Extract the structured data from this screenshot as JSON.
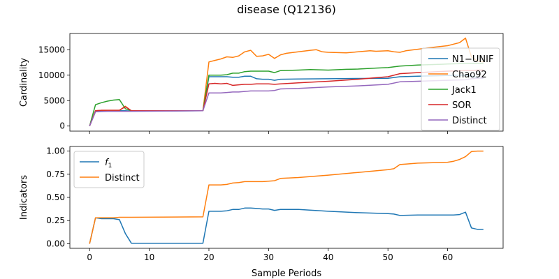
{
  "figure_title": "disease (Q12136)",
  "xlabel": "Sample Periods",
  "chart_data": [
    {
      "type": "line",
      "ylabel": "Cardinality",
      "xlim": [
        -3.3,
        69.3
      ],
      "ylim": [
        -1000,
        18200
      ],
      "xticks": [
        0,
        10,
        20,
        30,
        40,
        50,
        60
      ],
      "xtick_labels_visible": false,
      "yticks": [
        0,
        5000,
        10000,
        15000
      ],
      "ytick_labels": [
        "0",
        "5000",
        "10000",
        "15000"
      ],
      "legend_position": "right",
      "series": [
        {
          "name": "N1−UNIF",
          "color": "#1f77b4",
          "x": [
            0,
            1,
            2,
            3,
            4,
            5,
            6,
            7,
            19,
            20,
            21,
            22,
            23,
            24,
            25,
            26,
            27,
            28,
            29,
            30,
            31,
            32,
            35,
            40,
            45,
            50,
            52,
            55,
            60,
            62,
            63,
            64,
            65,
            66
          ],
          "y": [
            0,
            2900,
            3000,
            3000,
            3000,
            3000,
            3000,
            2950,
            3000,
            9700,
            9700,
            9700,
            9700,
            9600,
            9600,
            9800,
            9800,
            9300,
            9200,
            9200,
            9000,
            9200,
            9250,
            9300,
            9350,
            9400,
            9700,
            9800,
            9950,
            10000,
            10000,
            9800,
            9500,
            9400
          ]
        },
        {
          "name": "Chao92",
          "color": "#ff7f0e",
          "x": [
            0,
            1,
            2,
            3,
            4,
            5,
            6,
            7,
            19,
            20,
            21,
            22,
            23,
            24,
            25,
            26,
            27,
            28,
            29,
            30,
            31,
            32,
            33,
            35,
            37,
            38,
            39,
            40,
            43,
            45,
            47,
            48,
            50,
            51,
            52,
            53,
            55,
            57,
            60,
            61,
            62,
            63,
            64,
            65,
            66
          ],
          "y": [
            0,
            3000,
            3100,
            3100,
            3100,
            3100,
            3900,
            3000,
            3000,
            12600,
            12900,
            13200,
            13600,
            13500,
            13800,
            14600,
            14900,
            13700,
            13800,
            14100,
            13300,
            14000,
            14300,
            14600,
            14900,
            15000,
            14600,
            14500,
            14400,
            14600,
            14800,
            14700,
            14800,
            14600,
            14500,
            14800,
            15100,
            15400,
            15800,
            16100,
            16400,
            17300,
            13600,
            12800,
            12600
          ]
        },
        {
          "name": "Jack1",
          "color": "#2ca02c",
          "x": [
            0,
            1,
            2,
            3,
            4,
            5,
            6,
            7,
            19,
            20,
            21,
            22,
            23,
            24,
            25,
            26,
            27,
            28,
            29,
            30,
            31,
            32,
            35,
            37,
            40,
            43,
            45,
            48,
            50,
            52,
            55,
            60,
            63,
            64,
            65,
            66
          ],
          "y": [
            0,
            4200,
            4600,
            4900,
            5100,
            5200,
            3400,
            3000,
            3000,
            10000,
            10000,
            10000,
            10100,
            10400,
            10400,
            10700,
            10800,
            10800,
            10800,
            10800,
            10500,
            10900,
            11000,
            11100,
            11000,
            11150,
            11200,
            11400,
            11500,
            11800,
            12000,
            12200,
            12300,
            12300,
            12300,
            12300
          ]
        },
        {
          "name": "SOR",
          "color": "#d62728",
          "x": [
            0,
            1,
            2,
            3,
            4,
            5,
            6,
            7,
            19,
            20,
            21,
            22,
            23,
            24,
            25,
            26,
            27,
            28,
            29,
            30,
            31,
            32,
            35,
            40,
            45,
            48,
            50,
            52,
            55,
            60,
            63,
            64,
            65,
            66
          ],
          "y": [
            0,
            3000,
            3100,
            3100,
            3100,
            3100,
            3800,
            3000,
            3000,
            8300,
            8400,
            8300,
            8400,
            8000,
            8100,
            8200,
            8200,
            8300,
            8300,
            8300,
            8200,
            8300,
            8500,
            8800,
            9200,
            9500,
            9700,
            10300,
            10500,
            10800,
            10900,
            10900,
            11000,
            11000
          ]
        },
        {
          "name": "Distinct",
          "color": "#9467bd",
          "x": [
            0,
            1,
            2,
            3,
            4,
            5,
            6,
            7,
            19,
            20,
            21,
            22,
            23,
            24,
            25,
            26,
            27,
            28,
            29,
            30,
            31,
            32,
            35,
            40,
            45,
            50,
            52,
            55,
            60,
            63,
            64,
            65,
            66
          ],
          "y": [
            0,
            2800,
            2850,
            2900,
            2900,
            2900,
            2900,
            2900,
            3000,
            6500,
            6500,
            6500,
            6600,
            6700,
            6700,
            6800,
            6900,
            6900,
            6900,
            6900,
            7000,
            7300,
            7400,
            7700,
            7900,
            8200,
            8700,
            8800,
            9000,
            9100,
            9300,
            9400,
            9450
          ]
        }
      ]
    },
    {
      "type": "line",
      "ylabel": "Indicators",
      "xlim": [
        -3.3,
        69.3
      ],
      "ylim": [
        -0.05,
        1.05
      ],
      "xticks": [
        0,
        10,
        20,
        30,
        40,
        50,
        60
      ],
      "xtick_labels": [
        "0",
        "10",
        "20",
        "30",
        "40",
        "50",
        "60"
      ],
      "yticks": [
        0,
        0.25,
        0.5,
        0.75,
        1
      ],
      "ytick_labels": [
        "0.00",
        "0.25",
        "0.50",
        "0.75",
        "1.00"
      ],
      "legend_position": "upper left",
      "series": [
        {
          "name": "f",
          "name_subscript": "1",
          "color": "#1f77b4",
          "x": [
            0,
            1,
            2,
            3,
            4,
            5,
            6,
            7,
            19,
            20,
            21,
            22,
            23,
            24,
            25,
            26,
            27,
            28,
            29,
            30,
            31,
            32,
            35,
            40,
            45,
            50,
            51,
            52,
            55,
            60,
            61,
            62,
            63,
            64,
            65,
            66
          ],
          "y": [
            0,
            0.28,
            0.27,
            0.27,
            0.27,
            0.26,
            0.11,
            0.005,
            0.005,
            0.35,
            0.35,
            0.35,
            0.355,
            0.37,
            0.37,
            0.385,
            0.385,
            0.38,
            0.375,
            0.375,
            0.36,
            0.37,
            0.37,
            0.35,
            0.335,
            0.325,
            0.32,
            0.305,
            0.31,
            0.31,
            0.31,
            0.315,
            0.34,
            0.17,
            0.155,
            0.155
          ]
        },
        {
          "name": "Distinct",
          "color": "#ff7f0e",
          "x": [
            0,
            1,
            2,
            3,
            4,
            5,
            6,
            7,
            19,
            20,
            21,
            22,
            23,
            24,
            25,
            26,
            27,
            28,
            29,
            30,
            31,
            32,
            35,
            40,
            45,
            50,
            51,
            52,
            53,
            55,
            60,
            61,
            62,
            63,
            64,
            65,
            66
          ],
          "y": [
            0,
            0.28,
            0.28,
            0.28,
            0.28,
            0.285,
            0.285,
            0.285,
            0.29,
            0.635,
            0.635,
            0.635,
            0.64,
            0.655,
            0.66,
            0.67,
            0.67,
            0.67,
            0.67,
            0.675,
            0.68,
            0.705,
            0.715,
            0.74,
            0.77,
            0.8,
            0.81,
            0.855,
            0.86,
            0.87,
            0.88,
            0.89,
            0.91,
            0.94,
            0.995,
            1.0,
            1.0
          ]
        }
      ]
    }
  ]
}
